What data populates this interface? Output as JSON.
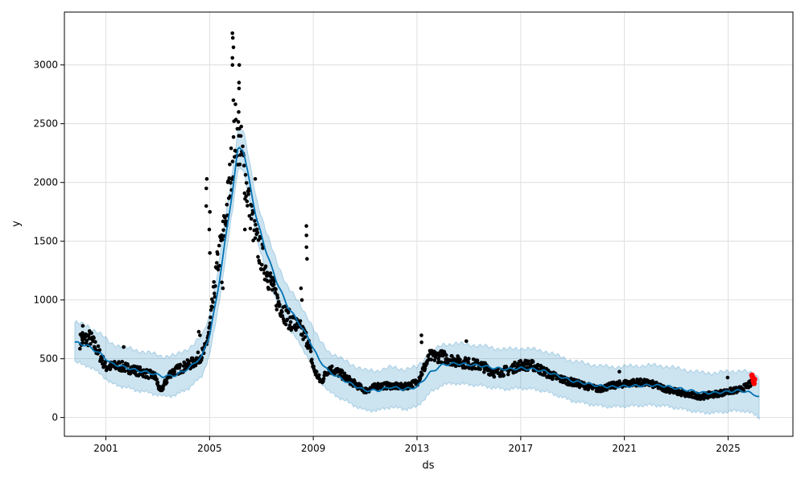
{
  "chart_data": {
    "type": "scatter",
    "title": "",
    "xlabel": "ds",
    "ylabel": "y",
    "xlim": [
      1999.4,
      2027.5
    ],
    "ylim": [
      -160,
      3450
    ],
    "x_ticks": [
      2001,
      2005,
      2009,
      2013,
      2017,
      2021,
      2025
    ],
    "x_tick_labels": [
      "2001",
      "2005",
      "2009",
      "2013",
      "2017",
      "2021",
      "2025"
    ],
    "y_ticks": [
      0,
      500,
      1000,
      1500,
      2000,
      2500,
      3000
    ],
    "y_tick_labels": [
      "0",
      "500",
      "1000",
      "1500",
      "2000",
      "2500",
      "3000"
    ],
    "grid": true,
    "colors": {
      "observed": "#000000",
      "forecast_line": "#0072B2",
      "uncertainty_band": "#0072B2",
      "recent_points": "#ff0000"
    },
    "observed_profile": {
      "x": [
        2000.0,
        2000.4,
        2000.7,
        2001.0,
        2001.5,
        2002.0,
        2002.5,
        2002.9,
        2003.1,
        2003.5,
        2004.0,
        2004.4,
        2004.8,
        2005.0,
        2005.3,
        2005.6,
        2005.85,
        2006.0,
        2006.2,
        2006.5,
        2006.8,
        2007.2,
        2007.6,
        2008.0,
        2008.5,
        2008.8,
        2009.0,
        2009.3,
        2009.6,
        2010.0,
        2010.5,
        2011.0,
        2011.5,
        2012.0,
        2012.5,
        2013.0,
        2013.5,
        2014.0,
        2014.5,
        2015.0,
        2015.5,
        2016.0,
        2016.5,
        2017.0,
        2017.5,
        2018.0,
        2018.5,
        2019.0,
        2019.5,
        2020.0,
        2020.5,
        2021.0,
        2021.5,
        2022.0,
        2022.5,
        2023.0,
        2023.5,
        2024.0,
        2024.5,
        2025.0,
        2025.5,
        2025.9
      ],
      "y": [
        650,
        680,
        560,
        430,
        440,
        410,
        380,
        350,
        220,
        380,
        430,
        470,
        560,
        750,
        1300,
        1650,
        2150,
        2450,
        2300,
        1850,
        1500,
        1250,
        1000,
        850,
        750,
        650,
        420,
        300,
        420,
        380,
        300,
        230,
        270,
        270,
        260,
        300,
        520,
        520,
        480,
        460,
        440,
        380,
        400,
        450,
        440,
        380,
        330,
        300,
        270,
        240,
        270,
        290,
        300,
        290,
        250,
        220,
        190,
        180,
        200,
        220,
        240,
        290
      ]
    },
    "spikes": [
      {
        "x": 2000.1,
        "values": [
          720,
          780
        ]
      },
      {
        "x": 2001.7,
        "values": [
          600
        ]
      },
      {
        "x": 2004.6,
        "values": [
          700,
          730
        ]
      },
      {
        "x": 2004.9,
        "values": [
          1800,
          1950,
          2030
        ]
      },
      {
        "x": 2005.0,
        "values": [
          1400,
          1600,
          1750
        ]
      },
      {
        "x": 2005.5,
        "values": [
          1100,
          1150
        ]
      },
      {
        "x": 2005.9,
        "values": [
          2700,
          3000,
          3060,
          3150,
          3230,
          3270
        ]
      },
      {
        "x": 2006.15,
        "values": [
          2600,
          2800,
          2850,
          3000
        ]
      },
      {
        "x": 2006.35,
        "values": [
          1600
        ]
      },
      {
        "x": 2006.75,
        "values": [
          2030
        ]
      },
      {
        "x": 2008.75,
        "values": [
          1350,
          1450,
          1550,
          1630
        ]
      },
      {
        "x": 2008.55,
        "values": [
          1000,
          1100
        ]
      },
      {
        "x": 2013.2,
        "values": [
          640,
          700
        ]
      },
      {
        "x": 2014.9,
        "values": [
          650
        ]
      },
      {
        "x": 2020.8,
        "values": [
          390
        ]
      },
      {
        "x": 2025.0,
        "values": [
          340
        ]
      }
    ],
    "recent_points": {
      "x": [
        2025.92,
        2025.95,
        2025.98,
        2026.0,
        2026.02
      ],
      "y": [
        360,
        340,
        310,
        290,
        325
      ]
    },
    "series": [
      {
        "x": [
          1999.8,
          2000.3,
          2000.8,
          2001.2,
          2001.7,
          2002.2,
          2002.7,
          2003.2,
          2003.7,
          2004.2,
          2004.7,
          2005.0,
          2005.3,
          2005.6,
          2005.9,
          2006.1,
          2006.3,
          2006.5,
          2006.8,
          2007.2,
          2007.6,
          2008.0,
          2008.4,
          2008.8,
          2009.2,
          2009.6,
          2010.0,
          2010.5,
          2011.0,
          2011.5,
          2012.0,
          2012.5,
          2013.0,
          2013.5,
          2014.0,
          2014.5,
          2015.0,
          2015.5,
          2016.0,
          2016.5,
          2017.0,
          2017.5,
          2018.0,
          2018.5,
          2019.0,
          2019.5,
          2020.0,
          2020.5,
          2021.0,
          2021.5,
          2022.0,
          2022.5,
          2023.0,
          2023.5,
          2024.0,
          2024.5,
          2025.0,
          2025.5,
          2026.0,
          2026.2
        ],
        "values": [
          640,
          610,
          540,
          460,
          430,
          400,
          380,
          350,
          360,
          420,
          520,
          700,
          1050,
          1500,
          1950,
          2300,
          2280,
          2050,
          1700,
          1400,
          1150,
          950,
          820,
          680,
          500,
          390,
          340,
          280,
          230,
          230,
          260,
          240,
          260,
          380,
          450,
          460,
          450,
          440,
          420,
          410,
          420,
          410,
          390,
          350,
          310,
          290,
          270,
          260,
          265,
          270,
          275,
          270,
          250,
          230,
          210,
          210,
          220,
          230,
          200,
          170
        ],
        "lower": [
          470,
          440,
          370,
          290,
          260,
          230,
          210,
          180,
          190,
          250,
          350,
          530,
          880,
          1330,
          1780,
          2130,
          2110,
          1880,
          1530,
          1230,
          980,
          780,
          650,
          510,
          330,
          220,
          170,
          110,
          60,
          60,
          90,
          70,
          90,
          210,
          280,
          290,
          280,
          270,
          250,
          240,
          250,
          240,
          220,
          180,
          140,
          120,
          100,
          90,
          95,
          100,
          105,
          100,
          80,
          60,
          40,
          40,
          50,
          60,
          30,
          0
        ],
        "upper": [
          810,
          780,
          710,
          630,
          600,
          570,
          550,
          520,
          530,
          590,
          690,
          870,
          1220,
          1670,
          2120,
          2470,
          2450,
          2220,
          1870,
          1570,
          1320,
          1120,
          990,
          850,
          670,
          560,
          510,
          450,
          400,
          400,
          430,
          410,
          430,
          550,
          620,
          630,
          620,
          610,
          590,
          580,
          590,
          580,
          560,
          520,
          480,
          460,
          440,
          430,
          435,
          440,
          445,
          440,
          420,
          400,
          380,
          380,
          390,
          400,
          370,
          340
        ]
      }
    ]
  }
}
